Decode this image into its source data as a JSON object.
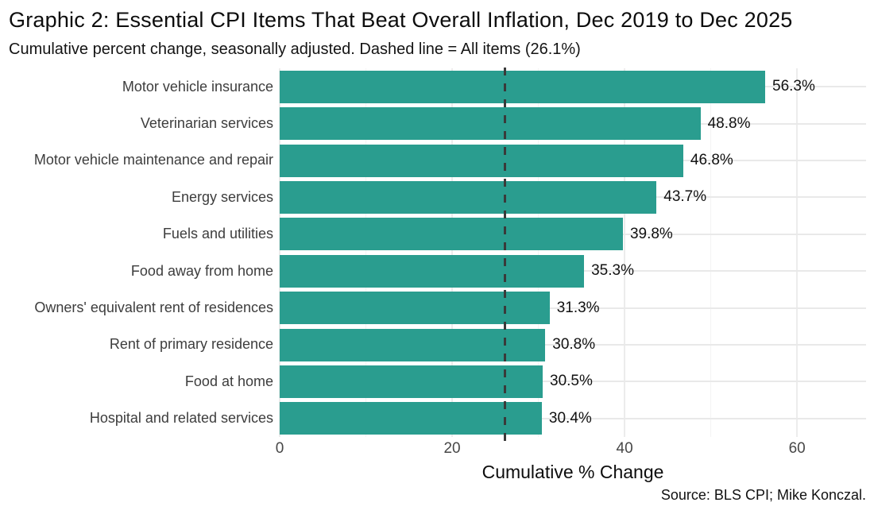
{
  "header": {
    "title": "Graphic 2: Essential CPI Items That Beat Overall Inflation, Dec 2019 to Dec 2025",
    "subtitle": "Cumulative percent change, seasonally adjusted. Dashed line = All items (26.1%)"
  },
  "chart_data": {
    "type": "bar",
    "orientation": "horizontal",
    "categories": [
      "Motor vehicle insurance",
      "Veterinarian services",
      "Motor vehicle maintenance and repair",
      "Energy services",
      "Fuels and utilities",
      "Food away from home",
      "Owners' equivalent rent of residences",
      "Rent of primary residence",
      "Food at home",
      "Hospital and related services"
    ],
    "values": [
      56.3,
      48.8,
      46.8,
      43.7,
      39.8,
      35.3,
      31.3,
      30.8,
      30.5,
      30.4
    ],
    "value_labels": [
      "56.3%",
      "48.8%",
      "46.8%",
      "43.7%",
      "39.8%",
      "35.3%",
      "31.3%",
      "30.8%",
      "30.5%",
      "30.4%"
    ],
    "xlabel": "Cumulative % Change",
    "x_ticks": [
      0,
      20,
      40,
      60
    ],
    "x_tick_labels": [
      "0",
      "20",
      "40",
      "60"
    ],
    "xlim": [
      0,
      68
    ],
    "grid": true,
    "legend": false,
    "reference_line": {
      "value": 26.1,
      "label": "All items (26.1%)",
      "style": "dashed"
    },
    "colors": {
      "bar": "#2a9d8f",
      "reference_line": "#3a3a3a",
      "gridline_major": "#ececec",
      "gridline_minor": "#f4f4f4"
    }
  },
  "footer": {
    "source": "Source: BLS CPI; Mike Konczal."
  }
}
